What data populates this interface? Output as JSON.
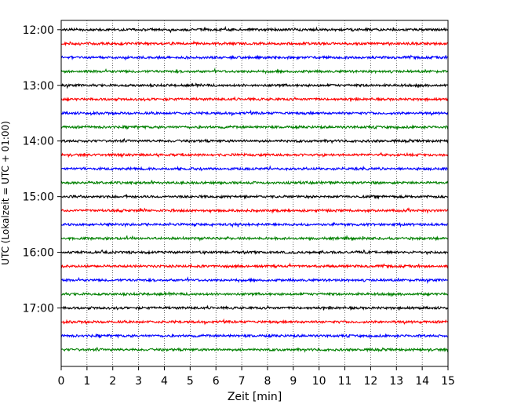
{
  "chart_data": {
    "type": "line",
    "chart_kind": "helicorder",
    "xlabel": "Zeit  [min]",
    "ylabel": "UTC (Lokalzeit = UTC + 01:00)",
    "xlim": [
      0,
      15
    ],
    "x_ticks": [
      "0",
      "1",
      "2",
      "3",
      "4",
      "5",
      "6",
      "7",
      "8",
      "9",
      "10",
      "11",
      "12",
      "13",
      "14",
      "15"
    ],
    "y_ticks": [
      "12:00",
      "13:00",
      "14:00",
      "15:00",
      "16:00",
      "17:00"
    ],
    "y_range_utc": [
      "11:50",
      "18:03"
    ],
    "grid": "vertical dotted lines at each minute",
    "trace_interval_min": 15,
    "trace_start_times_utc": [
      "12:00",
      "12:15",
      "12:30",
      "12:45",
      "13:00",
      "13:15",
      "13:30",
      "13:45",
      "14:00",
      "14:15",
      "14:30",
      "14:45",
      "15:00",
      "15:15",
      "15:30",
      "15:45",
      "16:00",
      "16:15",
      "16:30",
      "16:45",
      "17:00",
      "17:15",
      "17:30",
      "17:45"
    ],
    "trace_colors": [
      "#000000",
      "#ff0000",
      "#0000ff",
      "#008000"
    ],
    "signal": "low-amplitude seismic noise, no distinct events"
  }
}
